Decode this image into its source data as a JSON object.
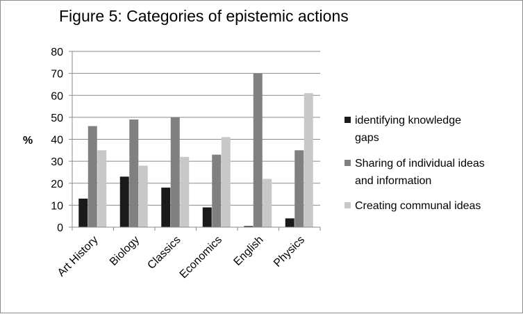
{
  "chart_data": {
    "type": "bar",
    "title": "Figure 5: Categories of epistemic actions",
    "xlabel": "",
    "ylabel": "%",
    "ylim": [
      0,
      80
    ],
    "yticks": [
      0,
      10,
      20,
      30,
      40,
      50,
      60,
      70,
      80
    ],
    "grid": true,
    "legend_position": "right",
    "categories": [
      "Art History",
      "Biology",
      "Classics",
      "Economics",
      "English",
      "Physics"
    ],
    "series": [
      {
        "name": "identifying knowledge gaps",
        "legend_lines": [
          "identifying knowledge",
          "gaps"
        ],
        "color": "#1a1a1a",
        "values": [
          13,
          23,
          18,
          9,
          0.5,
          4
        ]
      },
      {
        "name": "Sharing of individual ideas and information",
        "legend_lines": [
          "Sharing of individual ideas",
          "and information"
        ],
        "color": "#808080",
        "values": [
          46,
          49,
          50,
          33,
          70,
          35
        ]
      },
      {
        "name": "Creating communal ideas",
        "legend_lines": [
          "Creating communal ideas"
        ],
        "color": "#c8c8c8",
        "values": [
          35,
          28,
          32,
          41,
          22,
          61
        ]
      }
    ]
  }
}
